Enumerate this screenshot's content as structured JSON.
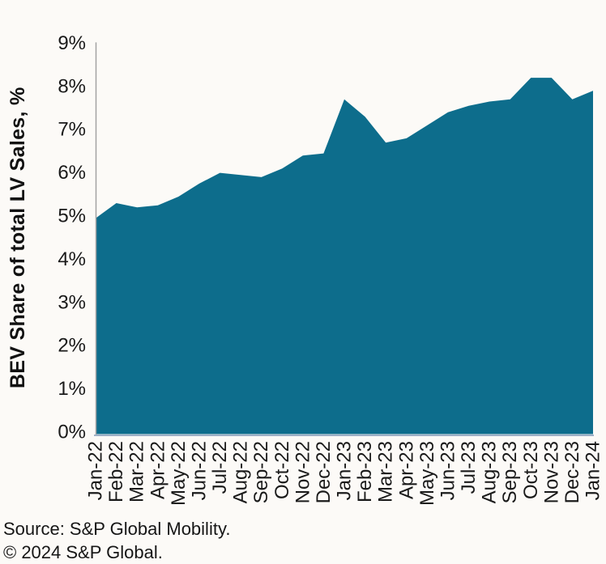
{
  "chart_data": {
    "type": "area",
    "title": "",
    "xlabel": "",
    "ylabel": "BEV Share of total LV Sales, %",
    "categories": [
      "Jan-22",
      "Feb-22",
      "Mar-22",
      "Apr-22",
      "May-22",
      "Jun-22",
      "Jul-22",
      "Aug-22",
      "Sep-22",
      "Oct-22",
      "Nov-22",
      "Dec-22",
      "Jan-23",
      "Feb-23",
      "Mar-23",
      "Apr-23",
      "May-23",
      "Jun-23",
      "Jul-23",
      "Aug-23",
      "Sep-23",
      "Oct-23",
      "Nov-23",
      "Dec-23",
      "Jan-24"
    ],
    "values": [
      4.95,
      5.3,
      5.2,
      5.25,
      5.45,
      5.75,
      6.0,
      5.95,
      5.9,
      6.1,
      6.4,
      6.45,
      7.7,
      7.3,
      6.7,
      6.8,
      7.1,
      7.4,
      7.55,
      7.65,
      7.7,
      8.2,
      8.2,
      7.7,
      7.9
    ],
    "ylim": [
      0,
      9
    ],
    "ytick_step": 1,
    "ytick_suffix": "%",
    "grid": false,
    "legend": "none",
    "colors": {
      "area_fill": "#0d6d8c",
      "axis_line": "#a3a3a3",
      "baseline": "#9eb0c6",
      "text": "#1a1a1a",
      "background": "#fcfaf7"
    }
  },
  "footer": {
    "source": "Source: S&P Global Mobility.",
    "copyright": "© 2024 S&P Global."
  }
}
